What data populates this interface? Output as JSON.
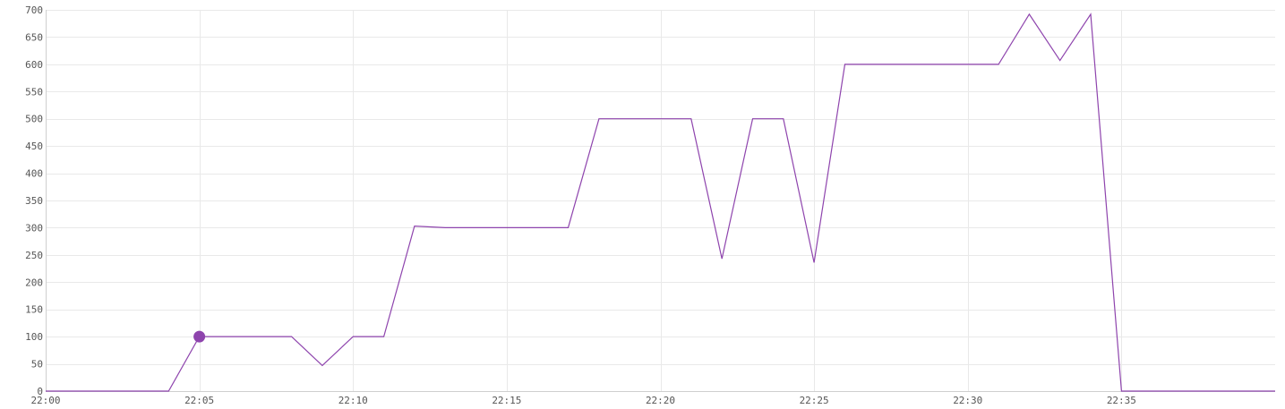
{
  "chart_data": {
    "type": "line",
    "title": "",
    "xlabel": "",
    "ylabel": "",
    "x_ticks": [
      "22:00",
      "22:05",
      "22:10",
      "22:15",
      "22:20",
      "22:25",
      "22:30",
      "22:35"
    ],
    "x_tick_minutes": [
      0,
      5,
      10,
      15,
      20,
      25,
      30,
      35
    ],
    "xlim_minutes": [
      0,
      40
    ],
    "y_ticks": [
      0,
      50,
      100,
      150,
      200,
      250,
      300,
      350,
      400,
      450,
      500,
      550,
      600,
      650,
      700
    ],
    "ylim": [
      0,
      700
    ],
    "grid": true,
    "legend": "none",
    "color": "#8e44ad",
    "series": [
      {
        "x": [
          "22:00",
          "22:01",
          "22:02",
          "22:03",
          "22:04",
          "22:05",
          "22:06",
          "22:07",
          "22:08",
          "22:09",
          "22:10",
          "22:11",
          "22:12",
          "22:13",
          "22:14",
          "22:15",
          "22:16",
          "22:17",
          "22:18",
          "22:19",
          "22:20",
          "22:21",
          "22:22",
          "22:23",
          "22:24",
          "22:25",
          "22:26",
          "22:27",
          "22:28",
          "22:29",
          "22:30",
          "22:31",
          "22:32",
          "22:33",
          "22:34",
          "22:35",
          "22:36",
          "22:37",
          "22:38",
          "22:39",
          "22:40"
        ],
        "y": [
          0,
          0,
          0,
          0,
          0,
          100,
          100,
          100,
          100,
          47,
          100,
          100,
          303,
          300,
          300,
          300,
          300,
          300,
          500,
          500,
          500,
          500,
          243,
          500,
          500,
          236,
          600,
          600,
          600,
          600,
          600,
          600,
          692,
          607,
          692,
          0,
          0,
          0,
          0,
          0,
          0
        ]
      }
    ],
    "highlight_point": {
      "x": "22:05",
      "y": 100
    }
  }
}
